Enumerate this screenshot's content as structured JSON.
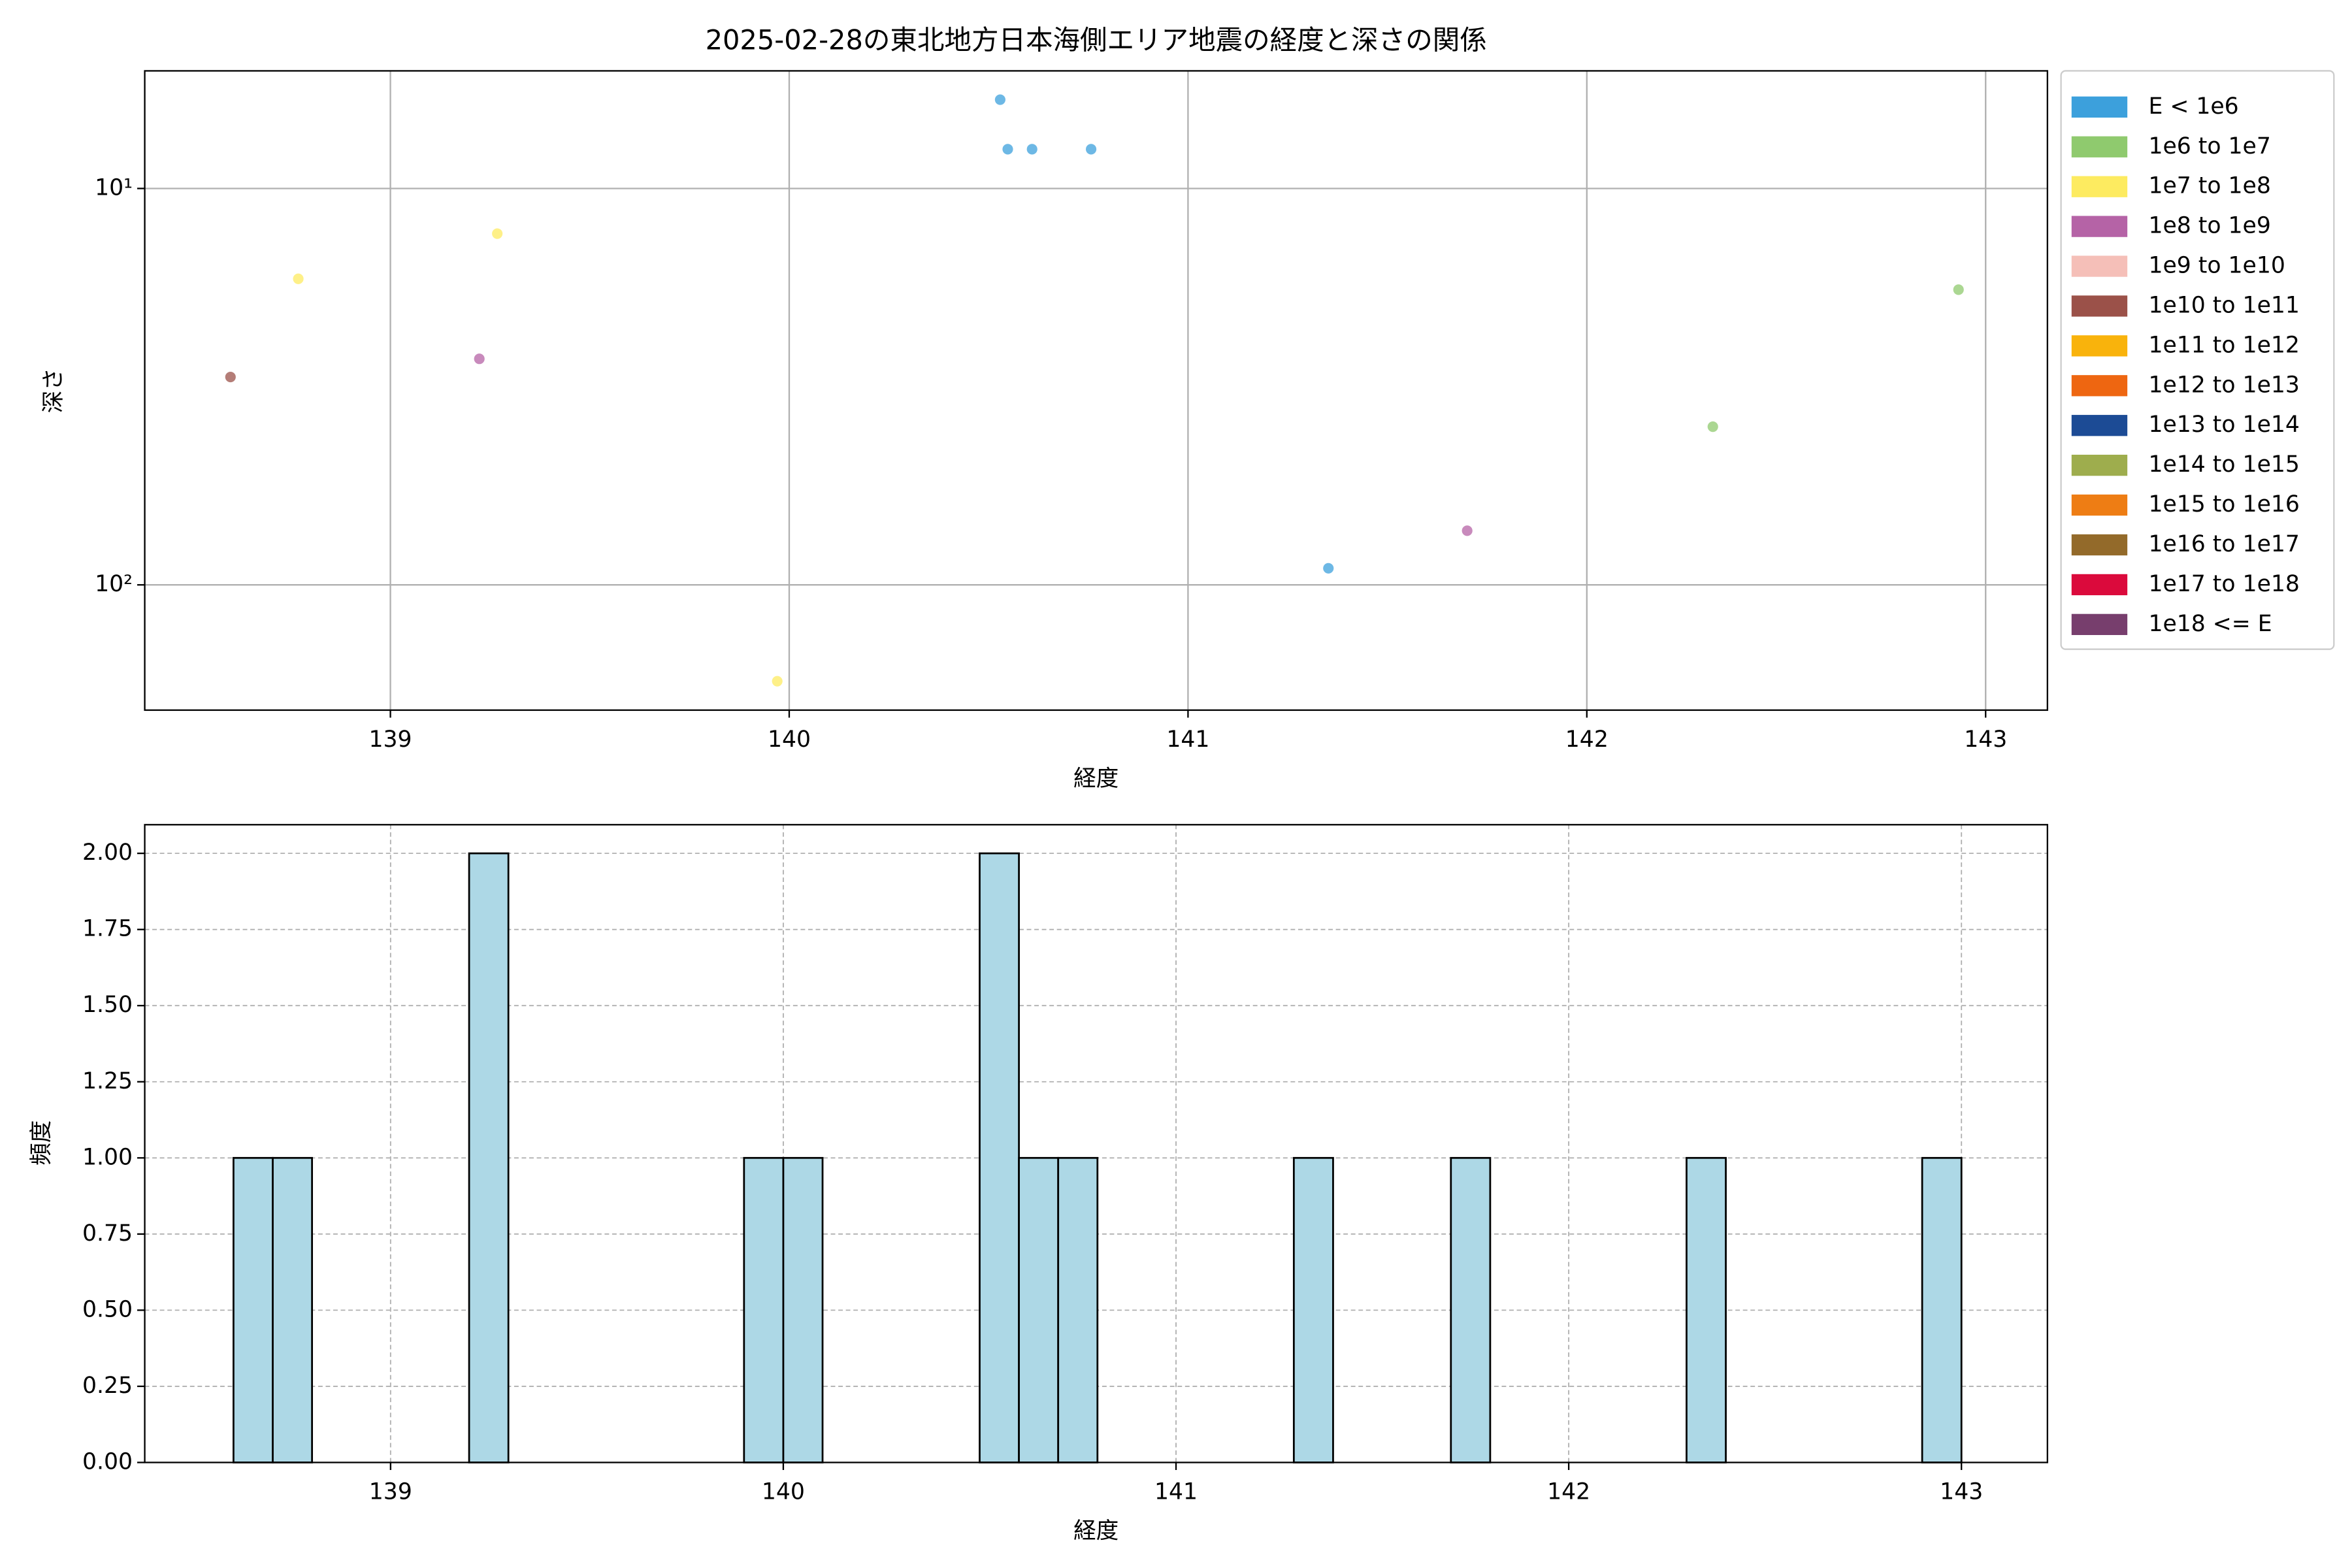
{
  "chart_data": [
    {
      "type": "scatter",
      "title": "2025-02-28の東北地方日本海側エリア地震の経度と深さの関係",
      "x_label": "経度",
      "y_label": "深さ",
      "xlim": [
        138.384,
        143.155
      ],
      "xticks": [
        139,
        140,
        141,
        142,
        143
      ],
      "ylim": [
        5.05,
        207
      ],
      "y_log": true,
      "y_inverted": true,
      "yticks": [
        {
          "value": 10,
          "label": "10¹"
        },
        {
          "value": 100,
          "label": "10²"
        }
      ],
      "grid": true,
      "legend": "outside-upper-right",
      "series": [
        {
          "name": "E < 1e6",
          "color": "#3ca0dc",
          "x": [
            140.529,
            140.548,
            140.609,
            140.757,
            141.352
          ],
          "values": [
            5.97,
            7.96,
            7.96,
            7.96,
            90.8
          ]
        },
        {
          "name": "1e6 to 1e7",
          "color": "#8fca6e",
          "x": [
            142.316,
            142.932
          ],
          "values": [
            39.9,
            18.0
          ]
        },
        {
          "name": "1e7 to 1e8",
          "color": "#fdeb60",
          "x": [
            138.769,
            139.268,
            139.97
          ],
          "values": [
            16.9,
            13.0,
            175
          ]
        },
        {
          "name": "1e8 to 1e9",
          "color": "#b563a6",
          "x": [
            139.223,
            141.7
          ],
          "values": [
            26.9,
            73.0
          ]
        },
        {
          "name": "1e9 to 1e10",
          "color": "#f5bfb8",
          "x": [],
          "values": []
        },
        {
          "name": "1e10 to 1e11",
          "color": "#9b5149",
          "x": [
            138.599
          ],
          "values": [
            29.9
          ]
        },
        {
          "name": "1e11 to 1e12",
          "color": "#f9b30c",
          "x": [],
          "values": []
        },
        {
          "name": "1e12 to 1e13",
          "color": "#ee6611",
          "x": [],
          "values": []
        },
        {
          "name": "1e13 to 1e14",
          "color": "#1c4b95",
          "x": [],
          "values": []
        },
        {
          "name": "1e14 to 1e15",
          "color": "#9ead4d",
          "x": [],
          "values": []
        },
        {
          "name": "1e15 to 1e16",
          "color": "#ee7d14",
          "x": [],
          "values": []
        },
        {
          "name": "1e16 to 1e17",
          "color": "#936a2a",
          "x": [],
          "values": []
        },
        {
          "name": "1e17 to 1e18",
          "color": "#db0a3c",
          "x": [],
          "values": []
        },
        {
          "name": "1e18 <= E",
          "color": "#773e6d",
          "x": [],
          "values": []
        }
      ]
    },
    {
      "type": "histogram",
      "x_label": "経度",
      "y_label": "頻度",
      "xlim": [
        138.374,
        143.219
      ],
      "xticks": [
        139,
        140,
        141,
        142,
        143
      ],
      "ylim": [
        0,
        2.094
      ],
      "yticks": [
        {
          "value": 0,
          "label": "0.00"
        },
        {
          "value": 0.25,
          "label": "0.25"
        },
        {
          "value": 0.5,
          "label": "0.50"
        },
        {
          "value": 0.75,
          "label": "0.75"
        },
        {
          "value": 1,
          "label": "1.00"
        },
        {
          "value": 1.25,
          "label": "1.25"
        },
        {
          "value": 1.5,
          "label": "1.50"
        },
        {
          "value": 1.75,
          "label": "1.75"
        },
        {
          "value": 2,
          "label": "2.00"
        }
      ],
      "grid": true,
      "grid_style": "dashed",
      "color": "#add8e6",
      "bins": [
        138.6,
        138.7,
        138.8,
        138.9,
        139.0,
        139.1,
        139.2,
        139.3,
        139.4,
        139.5,
        139.6,
        139.7,
        139.8,
        139.9,
        140.0,
        140.1,
        140.2,
        140.3,
        140.4,
        140.5,
        140.6,
        140.7,
        140.8,
        140.9,
        141.0,
        141.1,
        141.2,
        141.3,
        141.4,
        141.5,
        141.6,
        141.7,
        141.8,
        141.9,
        142.0,
        142.1,
        142.2,
        142.3,
        142.4,
        142.5,
        142.6,
        142.7,
        142.8,
        142.9,
        143.0
      ],
      "values": [
        1,
        1,
        0,
        0,
        0,
        0,
        2,
        0,
        0,
        0,
        0,
        0,
        0,
        1,
        1,
        0,
        0,
        0,
        0,
        2,
        1,
        1,
        0,
        0,
        0,
        0,
        0,
        1,
        0,
        0,
        0,
        1,
        0,
        0,
        0,
        0,
        0,
        1,
        0,
        0,
        0,
        0,
        0,
        1
      ]
    }
  ]
}
